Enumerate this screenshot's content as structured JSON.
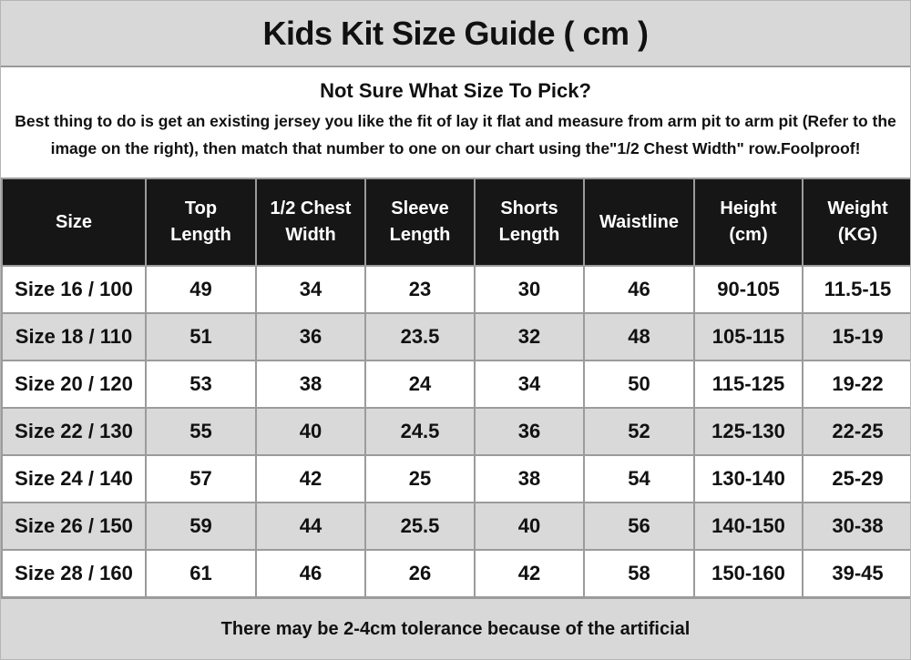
{
  "title": "Kids Kit Size Guide ( cm )",
  "info": {
    "heading": "Not Sure What Size To Pick?",
    "body": "Best thing to do is get an existing jersey you like the fit of lay it flat and measure from arm pit to arm pit (Refer to the image on the right), then match that number to one on our chart using the\"1/2 Chest Width\" row.Foolproof!"
  },
  "chart_data": {
    "type": "table",
    "title": "Kids Kit Size Guide ( cm )",
    "columns": [
      "Size",
      "Top Length",
      "1/2 Chest Width",
      "Sleeve Length",
      "Shorts Length",
      "Waistline",
      "Height (cm)",
      "Weight (KG)"
    ],
    "rows": [
      [
        "Size 16 / 100",
        "49",
        "34",
        "23",
        "30",
        "46",
        "90-105",
        "11.5-15"
      ],
      [
        "Size 18 / 110",
        "51",
        "36",
        "23.5",
        "32",
        "48",
        "105-115",
        "15-19"
      ],
      [
        "Size 20 / 120",
        "53",
        "38",
        "24",
        "34",
        "50",
        "115-125",
        "19-22"
      ],
      [
        "Size 22 / 130",
        "55",
        "40",
        "24.5",
        "36",
        "52",
        "125-130",
        "22-25"
      ],
      [
        "Size 24 / 140",
        "57",
        "42",
        "25",
        "38",
        "54",
        "130-140",
        "25-29"
      ],
      [
        "Size 26 / 150",
        "59",
        "44",
        "25.5",
        "40",
        "56",
        "140-150",
        "30-38"
      ],
      [
        "Size 28 / 160",
        "61",
        "46",
        "26",
        "42",
        "58",
        "150-160",
        "39-45"
      ]
    ]
  },
  "footer_note": "There may be 2-4cm tolerance because of the artificial",
  "colors": {
    "bar_gray": "#d8d8d8",
    "row_alt_gray": "#d9d9d9",
    "header_black": "#161616",
    "border_gray": "#9b9b9b",
    "text": "#111111",
    "header_text": "#ffffff"
  }
}
